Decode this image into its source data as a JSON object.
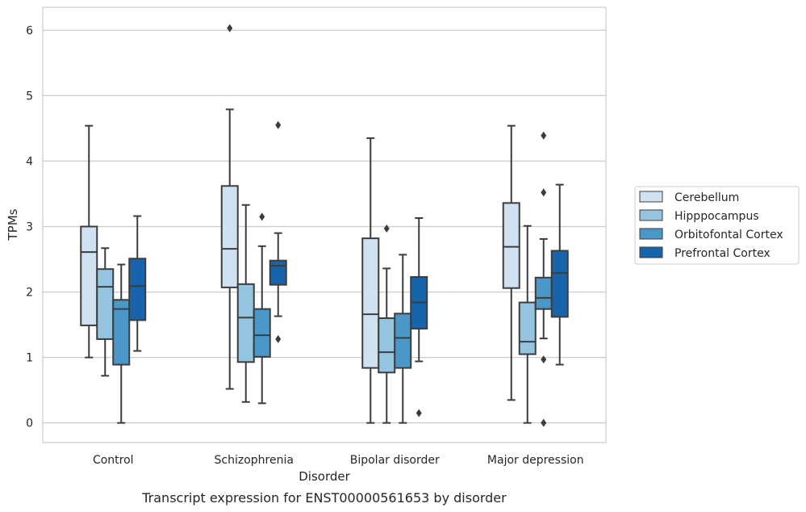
{
  "chart_data": {
    "type": "box",
    "title": "",
    "caption": "Transcript expression for ENST00000561653 by disorder",
    "xlabel": "Disorder",
    "ylabel": "TPMs",
    "ylim": [
      -0.3,
      6.35
    ],
    "yticks": [
      0,
      1,
      2,
      3,
      4,
      5,
      6
    ],
    "grid": "horizontal",
    "legend": "right",
    "categories": [
      "Control",
      "Schizophrenia",
      "Bipolar disorder",
      "Major depression"
    ],
    "series": [
      {
        "name": "Cerebellum",
        "color": "#d0e1f2",
        "boxes": [
          {
            "whisker_low": 1.0,
            "q1": 1.49,
            "median": 2.61,
            "q3": 3.0,
            "whisker_high": 4.54,
            "outliers": []
          },
          {
            "whisker_low": 0.52,
            "q1": 2.07,
            "median": 2.66,
            "q3": 3.62,
            "whisker_high": 4.79,
            "outliers": [
              6.03
            ]
          },
          {
            "whisker_low": 0.0,
            "q1": 0.84,
            "median": 1.66,
            "q3": 2.82,
            "whisker_high": 4.35,
            "outliers": []
          },
          {
            "whisker_low": 0.35,
            "q1": 2.06,
            "median": 2.69,
            "q3": 3.36,
            "whisker_high": 4.54,
            "outliers": []
          }
        ]
      },
      {
        "name": "Hipppocampus",
        "color": "#94c4df",
        "boxes": [
          {
            "whisker_low": 0.72,
            "q1": 1.28,
            "median": 2.08,
            "q3": 2.35,
            "whisker_high": 2.67,
            "outliers": []
          },
          {
            "whisker_low": 0.32,
            "q1": 0.93,
            "median": 1.61,
            "q3": 2.12,
            "whisker_high": 3.33,
            "outliers": []
          },
          {
            "whisker_low": 0.0,
            "q1": 0.77,
            "median": 1.08,
            "q3": 1.6,
            "whisker_high": 2.36,
            "outliers": [
              2.97
            ]
          },
          {
            "whisker_low": 0.0,
            "q1": 1.05,
            "median": 1.24,
            "q3": 1.84,
            "whisker_high": 3.01,
            "outliers": []
          }
        ]
      },
      {
        "name": "Orbitofontal Cortex",
        "color": "#4a98c9",
        "boxes": [
          {
            "whisker_low": 0.0,
            "q1": 0.89,
            "median": 1.74,
            "q3": 1.88,
            "whisker_high": 2.42,
            "outliers": []
          },
          {
            "whisker_low": 0.3,
            "q1": 1.01,
            "median": 1.34,
            "q3": 1.74,
            "whisker_high": 2.7,
            "outliers": [
              3.15
            ]
          },
          {
            "whisker_low": 0.0,
            "q1": 0.84,
            "median": 1.3,
            "q3": 1.67,
            "whisker_high": 2.57,
            "outliers": []
          },
          {
            "whisker_low": 1.29,
            "q1": 1.74,
            "median": 1.91,
            "q3": 2.22,
            "whisker_high": 2.81,
            "outliers": [
              3.52,
              4.39,
              0.97,
              0.0
            ]
          }
        ]
      },
      {
        "name": "Prefrontal Cortex",
        "color": "#1764ab",
        "boxes": [
          {
            "whisker_low": 1.1,
            "q1": 1.57,
            "median": 2.09,
            "q3": 2.51,
            "whisker_high": 3.16,
            "outliers": []
          },
          {
            "whisker_low": 1.63,
            "q1": 2.11,
            "median": 2.4,
            "q3": 2.48,
            "whisker_high": 2.9,
            "outliers": [
              4.55,
              1.28
            ]
          },
          {
            "whisker_low": 0.94,
            "q1": 1.44,
            "median": 1.84,
            "q3": 2.23,
            "whisker_high": 3.13,
            "outliers": [
              0.15
            ]
          },
          {
            "whisker_low": 0.89,
            "q1": 1.62,
            "median": 2.29,
            "q3": 2.63,
            "whisker_high": 3.64,
            "outliers": []
          }
        ]
      }
    ]
  }
}
